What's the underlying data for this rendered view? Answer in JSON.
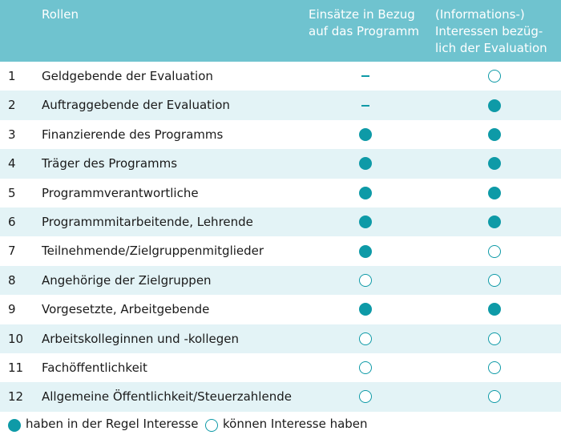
{
  "header": {
    "roles": "Rollen",
    "col1_lines": [
      "Einsätze in Bezug",
      "auf das Programm"
    ],
    "col2_lines": [
      "(Informations-)",
      "Interessen bezüg-",
      "lich der Evaluation"
    ]
  },
  "rows": [
    {
      "num": "1",
      "label": "Geldgebende der Evaluation",
      "col1": "dash",
      "col2": "empty"
    },
    {
      "num": "2",
      "label": "Auftraggebende der Evaluation",
      "col1": "dash",
      "col2": "full"
    },
    {
      "num": "3",
      "label": "Finanzierende des Programms",
      "col1": "full",
      "col2": "full"
    },
    {
      "num": "4",
      "label": "Träger des Programms",
      "col1": "full",
      "col2": "full"
    },
    {
      "num": "5",
      "label": "Programmverantwortliche",
      "col1": "full",
      "col2": "full"
    },
    {
      "num": "6",
      "label": "Programmmitarbeitende, Lehrende",
      "col1": "full",
      "col2": "full"
    },
    {
      "num": "7",
      "label": "Teilnehmende/Zielgruppenmitglieder",
      "col1": "full",
      "col2": "empty"
    },
    {
      "num": "8",
      "label": "Angehörige der Zielgruppen",
      "col1": "empty",
      "col2": "empty"
    },
    {
      "num": "9",
      "label": "Vorgesetzte, Arbeitgebende",
      "col1": "full",
      "col2": "full"
    },
    {
      "num": "10",
      "label": "Arbeitskolleginnen und -kollegen",
      "col1": "empty",
      "col2": "empty"
    },
    {
      "num": "11",
      "label": "Fachöffentlichkeit",
      "col1": "empty",
      "col2": "empty"
    },
    {
      "num": "12",
      "label": "Allgemeine Öffentlichkeit/Steuerzahlende",
      "col1": "empty",
      "col2": "empty"
    }
  ],
  "legend": {
    "full": "haben in der Regel Interesse",
    "empty": "können Interesse haben"
  },
  "colors": {
    "header_bg": "#6fc3cf",
    "stripe": "#e3f3f6",
    "accent": "#0e9aa7"
  }
}
